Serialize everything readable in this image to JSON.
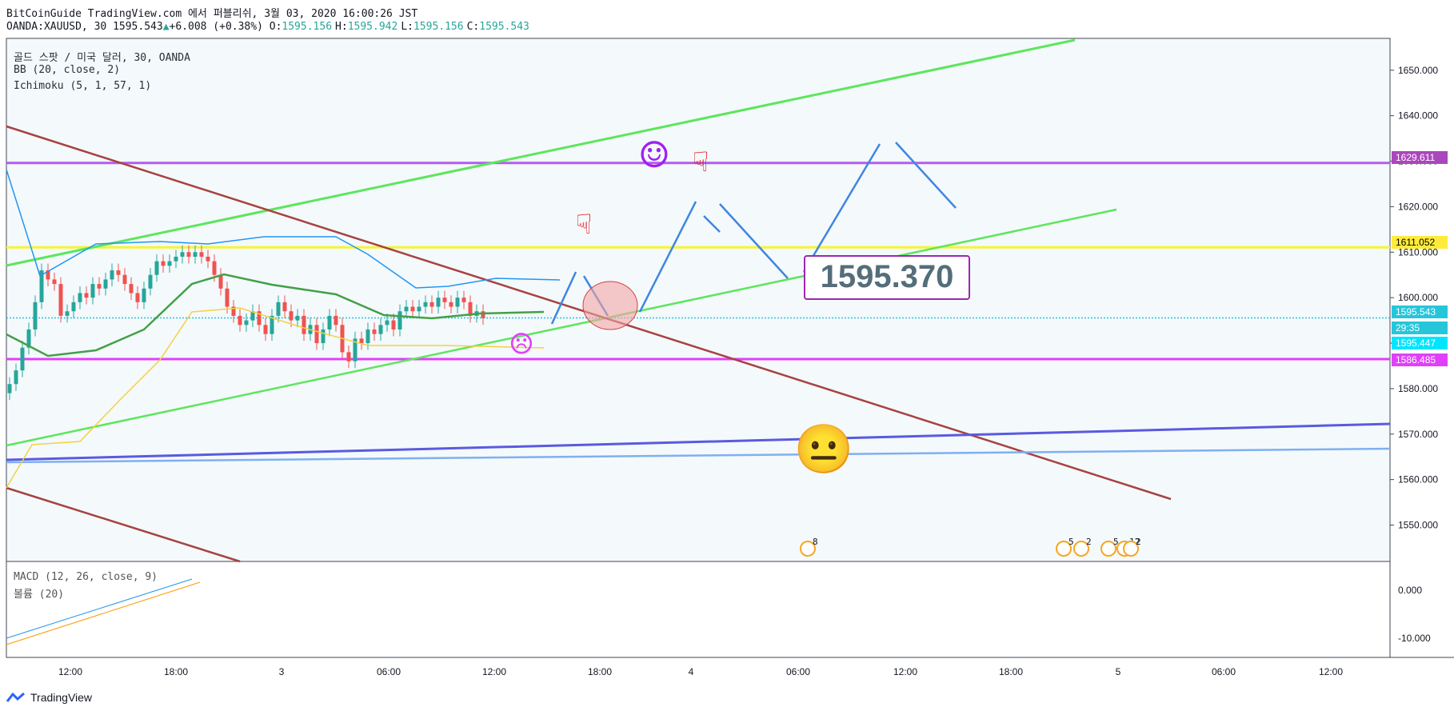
{
  "header": {
    "line1": "BitCoinGuide TradingView.com 에서 퍼블리쉬, 3월 03, 2020 16:00:26 JST",
    "symbol": "OANDA:XAUUSD, 30",
    "last": "1595.543",
    "change_arrow": "▲",
    "change": "+6.008 (+0.38%)",
    "o_label": "O:",
    "o": "1595.156",
    "h_label": "H:",
    "h": "1595.942",
    "l_label": "L:",
    "l": "1595.156",
    "c_label": "C:",
    "c": "1595.543"
  },
  "indicators": [
    "골드 스팟 / 미국 달러, 30, OANDA",
    "BB (20, close, 2)",
    "Ichimoku (5, 1, 57, 1)"
  ],
  "sub_indicators": {
    "macd": "MACD (12, 26, close, 9)",
    "volume": "볼륨 (20)"
  },
  "footer": {
    "brand": "TradingView"
  },
  "annotation_price": "1595.370",
  "chart_data": {
    "type": "candlestick",
    "symbol": "XAUUSD",
    "interval": "30",
    "ylim": [
      1542,
      1657
    ],
    "y_ticks": [
      "1650.000",
      "1640.000",
      "1630.000",
      "1620.000",
      "1610.000",
      "1600.000",
      "1590.000",
      "1580.000",
      "1570.000",
      "1560.000",
      "1550.000"
    ],
    "x_ticks": [
      "12:00",
      "18:00",
      "3",
      "06:00",
      "12:00",
      "18:00",
      "4",
      "06:00",
      "12:00",
      "18:00",
      "5",
      "06:00",
      "12:00"
    ],
    "price_tags": [
      {
        "value": "1629.611",
        "color": "#ab47bc"
      },
      {
        "value": "1611.052",
        "color": "#ffeb3b"
      },
      {
        "value": "1595.543",
        "color": "#26c6da"
      },
      {
        "value": "29:35",
        "color": "#26c6da"
      },
      {
        "value": "1595.447",
        "color": "#00e5ff"
      },
      {
        "value": "1586.485",
        "color": "#e040fb"
      }
    ],
    "horizontal_lines": [
      {
        "price": 1629.611,
        "color": "#b45cf0"
      },
      {
        "price": 1611.052,
        "color": "#f5f533"
      },
      {
        "price": 1595.543,
        "color": "#26c6da"
      },
      {
        "price": 1586.485,
        "color": "#e040fb"
      }
    ],
    "candles_close": [
      1581,
      1584,
      1589,
      1593,
      1599,
      1606,
      1604,
      1603,
      1596,
      1597,
      1599,
      1601,
      1600,
      1603,
      1602,
      1604,
      1606,
      1605,
      1603,
      1601,
      1599,
      1602,
      1605,
      1608,
      1607,
      1608,
      1609,
      1610,
      1609,
      1610,
      1609,
      1608,
      1605,
      1602,
      1598,
      1596,
      1594,
      1595,
      1597,
      1594,
      1592,
      1596,
      1599,
      1597,
      1595,
      1596,
      1592,
      1594,
      1590,
      1593,
      1596,
      1594,
      1588,
      1586,
      1591,
      1590,
      1593,
      1592,
      1594,
      1595,
      1593,
      1597,
      1598,
      1597,
      1598,
      1599,
      1598,
      1600,
      1599,
      1598,
      1600,
      1599,
      1596,
      1597,
      1595.5
    ],
    "macd_ticks": [
      "0.000",
      "-10.000"
    ],
    "economic_events": [
      "8",
      "5",
      "2",
      "5",
      "12",
      "2"
    ]
  },
  "colors": {
    "up": "#26a69a",
    "down": "#ef5350",
    "bb": "#2196f3",
    "ichimoku_base": "#43a047",
    "ichimoku_lag": "#f5d142",
    "resist_green": "#5ce65c",
    "downtrend": "#a64340",
    "support_blue": "#5a5ae0",
    "support_lightblue": "#7fb0f0",
    "arrows": "#3f86e0"
  }
}
